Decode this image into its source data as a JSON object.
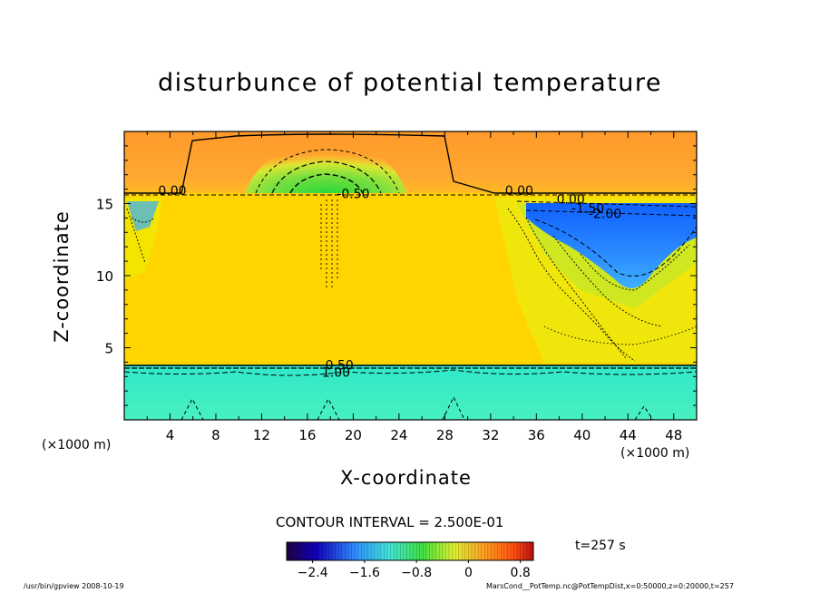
{
  "chart_data": {
    "type": "heatmap",
    "title": "disturbunce of potential temperature",
    "xlabel": "X-coordinate",
    "ylabel": "Z-coordinate",
    "x_unit": "(×1000 m)",
    "xlim": [
      0,
      50
    ],
    "ylim": [
      0,
      20
    ],
    "x_ticks": [
      4,
      8,
      12,
      16,
      20,
      24,
      28,
      32,
      36,
      40,
      44,
      48
    ],
    "y_ticks": [
      5,
      10,
      15
    ],
    "contour_interval_text": "CONTOUR INTERVAL = 2.500E-01",
    "colorbar": {
      "range": [
        -2.8,
        1.0
      ],
      "ticks": [
        -2.4,
        -1.6,
        -0.8,
        0,
        0.8
      ],
      "tick_labels": [
        "−2.4",
        "−1.6",
        "−0.8",
        "0",
        "0.8"
      ]
    },
    "contour_labels": [
      {
        "text": "0.00",
        "x": 4.2,
        "y": 15.9
      },
      {
        "text": "-0.50",
        "x": 20.0,
        "y": 15.7
      },
      {
        "text": "0.00",
        "x": 34.5,
        "y": 15.9
      },
      {
        "text": "0.00",
        "x": 39.0,
        "y": 15.3
      },
      {
        "text": "-1.50",
        "x": 40.5,
        "y": 14.7
      },
      {
        "text": "-2.00",
        "x": 42.0,
        "y": 14.3
      },
      {
        "text": "0.50",
        "x": 18.8,
        "y": 3.8
      },
      {
        "text": "1.00",
        "x": 18.5,
        "y": 3.3
      }
    ]
  },
  "annotations": {
    "time": "t=257 s",
    "footer_left": "/usr/bin/gpview   2008-10-19",
    "footer_right": "MarsCond__PotTemp.nc@PotTempDist,x=0:50000,z=0:20000,t=257"
  },
  "colors": {
    "upper_orange": "#ff9a2a",
    "middle_yellow": "#ffd400",
    "lower_cyan": "#3ef0c8",
    "cold_blue": "#1e78ff",
    "green": "#40e030"
  }
}
